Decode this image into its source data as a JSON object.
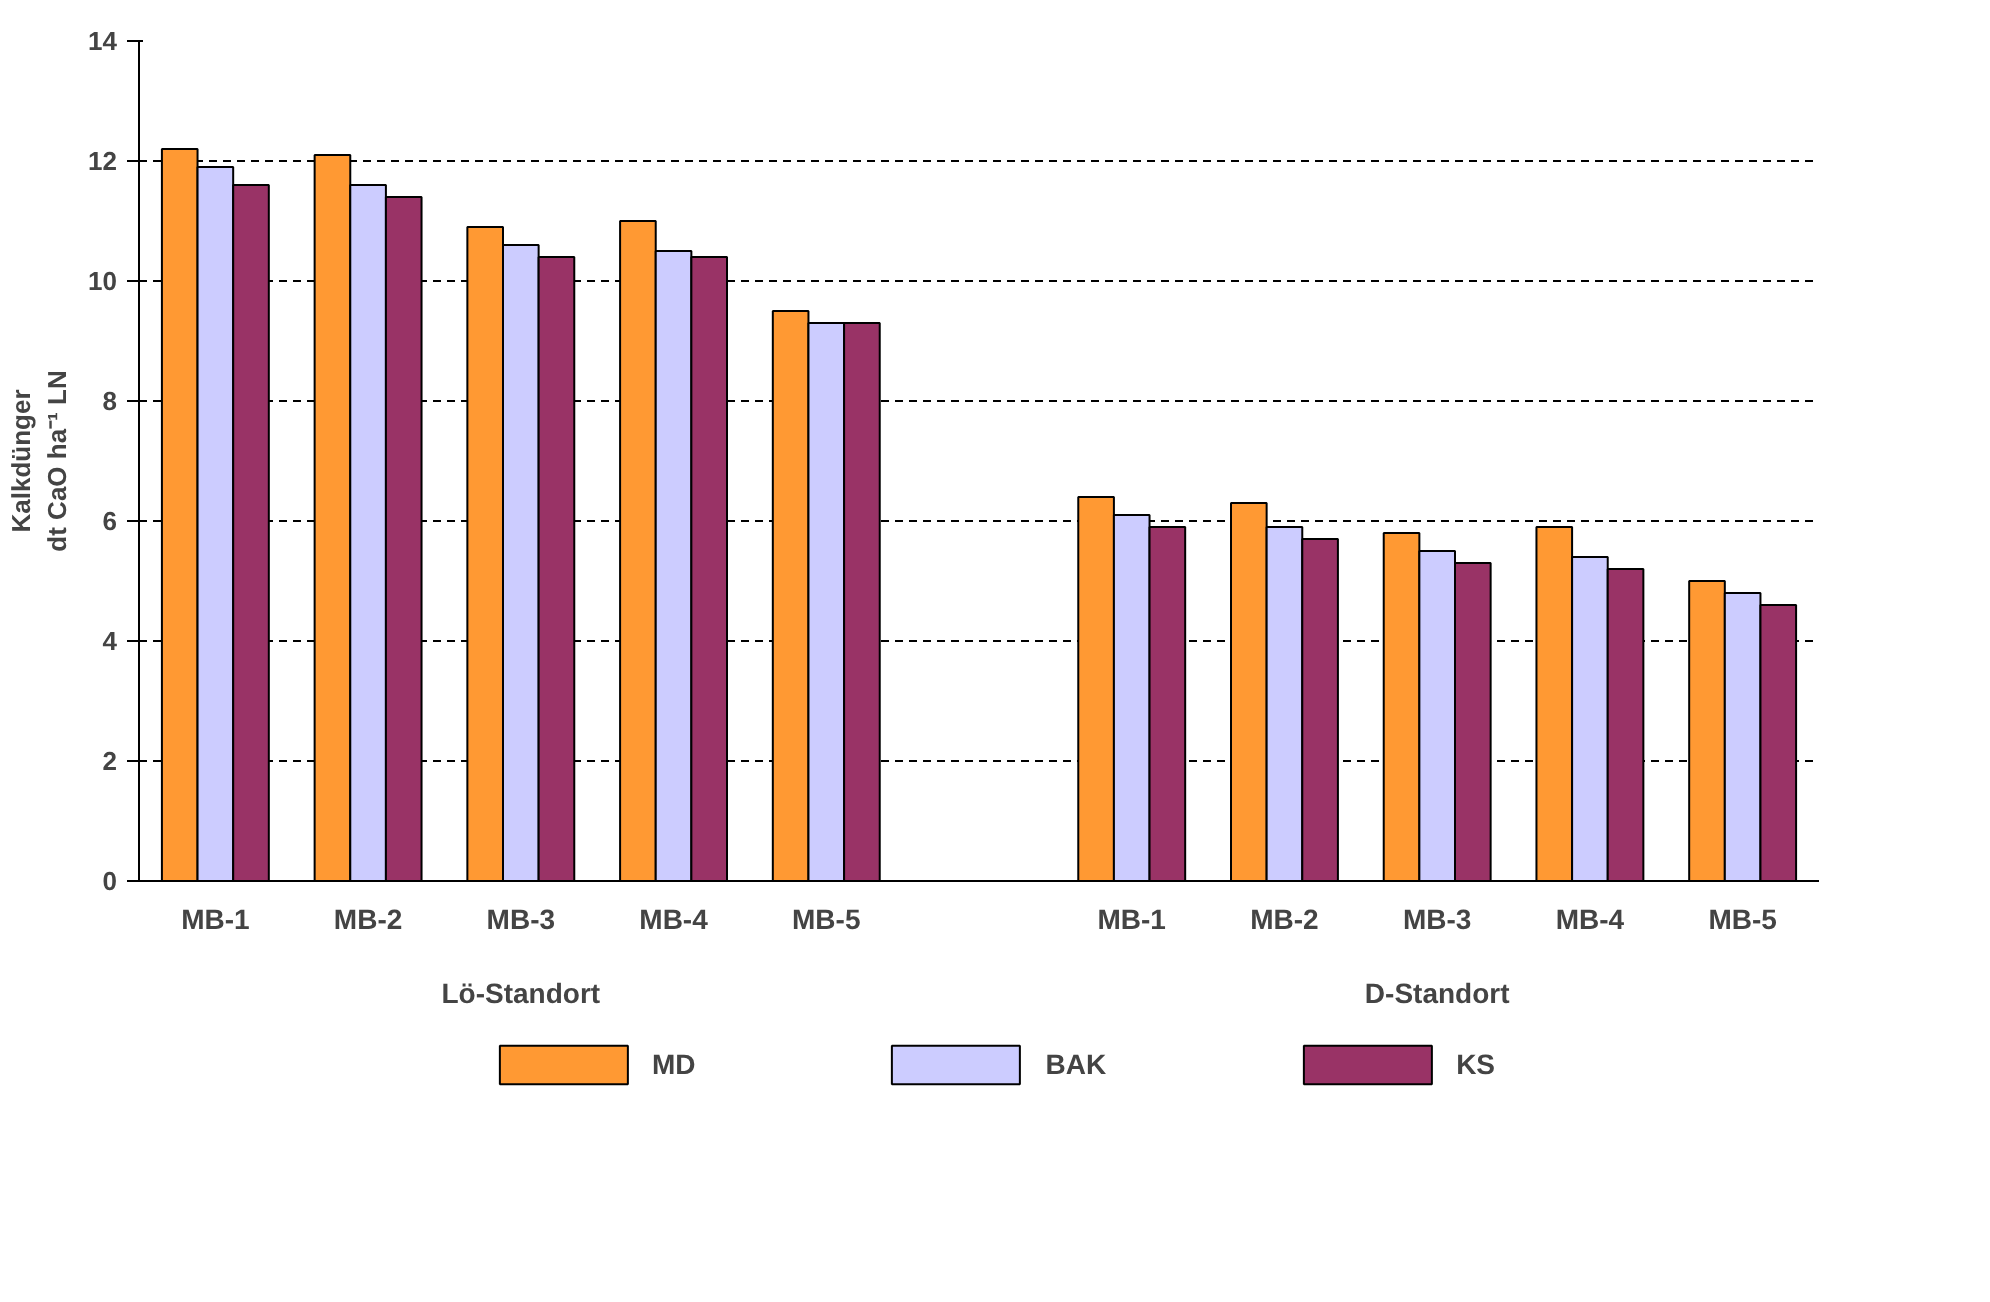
{
  "chart_data": {
    "type": "bar",
    "ylabel": "Kalkdünger\ndt CaO ha⁻¹ LN",
    "categories": [
      "MB-1",
      "MB-2",
      "MB-3",
      "MB-4",
      "MB-5",
      null,
      "MB-1",
      "MB-2",
      "MB-3",
      "MB-4",
      "MB-5"
    ],
    "series": [
      {
        "name": "MD",
        "color": "#ff9933",
        "values": [
          12.2,
          12.1,
          10.9,
          11.0,
          9.5,
          null,
          6.4,
          6.3,
          5.8,
          5.9,
          5.0
        ]
      },
      {
        "name": "BAK",
        "color": "#ccccff",
        "values": [
          11.9,
          11.6,
          10.6,
          10.5,
          9.3,
          null,
          6.1,
          5.9,
          5.5,
          5.4,
          4.8
        ]
      },
      {
        "name": "KS",
        "color": "#993366",
        "values": [
          11.6,
          11.4,
          10.4,
          10.4,
          9.3,
          null,
          5.9,
          5.7,
          5.3,
          5.2,
          4.6
        ]
      }
    ],
    "annotations": [
      "Lö-Standort",
      "D-Standort"
    ],
    "ylim": [
      0,
      14
    ],
    "yticks": [
      0,
      2,
      4,
      6,
      8,
      10,
      12,
      14
    ],
    "grid": "y",
    "legend": "bottom"
  }
}
